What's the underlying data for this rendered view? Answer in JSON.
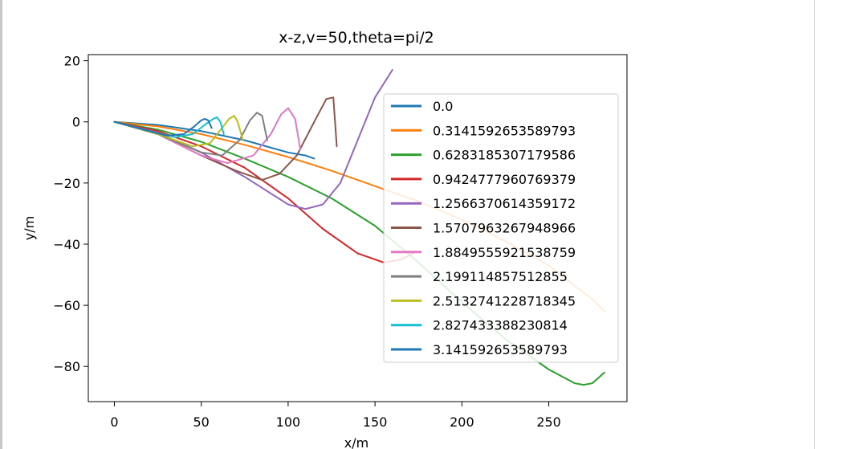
{
  "chart_data": {
    "type": "line",
    "title": "x-z,v=50,theta=pi/2",
    "xlabel": "x/m",
    "ylabel": "y/m",
    "xlim": [
      -15,
      295
    ],
    "ylim": [
      -91.5,
      22
    ],
    "xticks": [
      0,
      50,
      100,
      150,
      200,
      250
    ],
    "yticks": [
      20,
      0,
      -20,
      -40,
      -60,
      -80
    ],
    "xtick_labels": [
      "0",
      "50",
      "100",
      "150",
      "200",
      "250"
    ],
    "ytick_labels": [
      "20",
      "0",
      "−20",
      "−40",
      "−60",
      "−80"
    ],
    "grid": false,
    "legend_position": "center-right",
    "series": [
      {
        "name": "0.0",
        "color": "#1f77b4",
        "x": [
          0,
          25,
          50,
          75,
          100,
          110,
          115
        ],
        "y": [
          0,
          -1,
          -3,
          -6,
          -10,
          -11,
          -12
        ]
      },
      {
        "name": "0.3141592653589793",
        "color": "#ff7f0e",
        "x": [
          0,
          25,
          50,
          75,
          100,
          125,
          150,
          175,
          200,
          225,
          250,
          275,
          282
        ],
        "y": [
          0,
          -1.5,
          -4,
          -7.5,
          -11.5,
          -16,
          -21,
          -26,
          -32,
          -39,
          -47,
          -58,
          -62
        ]
      },
      {
        "name": "0.6283185307179586",
        "color": "#2ca02c",
        "x": [
          0,
          25,
          50,
          75,
          100,
          125,
          150,
          175,
          200,
          225,
          250,
          265,
          270,
          275,
          282
        ],
        "y": [
          0,
          -2.5,
          -6.5,
          -12,
          -18,
          -25,
          -34,
          -46,
          -59,
          -71,
          -81,
          -85.5,
          -86,
          -85.5,
          -82
        ]
      },
      {
        "name": "0.9424777960769379",
        "color": "#d62728",
        "x": [
          0,
          25,
          50,
          75,
          100,
          120,
          140,
          155,
          165,
          172
        ],
        "y": [
          0,
          -3,
          -8,
          -15,
          -25,
          -35,
          -43,
          -46,
          -45,
          -43
        ]
      },
      {
        "name": "1.2566370614359172",
        "color": "#9467bd",
        "x": [
          0,
          25,
          50,
          75,
          100,
          110,
          120,
          130,
          140,
          150,
          160
        ],
        "y": [
          0,
          -3.5,
          -10,
          -18,
          -27,
          -28.5,
          -27,
          -20,
          -6,
          8,
          17
        ]
      },
      {
        "name": "1.5707963267948966",
        "color": "#8c564b",
        "x": [
          0,
          25,
          50,
          70,
          85,
          95,
          105,
          115,
          122,
          126,
          128
        ],
        "y": [
          0,
          -4,
          -11,
          -16,
          -19,
          -17,
          -11,
          0,
          7.5,
          8,
          -8
        ]
      },
      {
        "name": "1.8849555921538759",
        "color": "#e377c2",
        "x": [
          0,
          25,
          50,
          65,
          80,
          90,
          96,
          100,
          104,
          107
        ],
        "y": [
          0,
          -4,
          -11,
          -13.5,
          -11,
          -4,
          2.5,
          4.5,
          1,
          -9
        ]
      },
      {
        "name": "2.199114857512855",
        "color": "#7f7f7f",
        "x": [
          0,
          25,
          50,
          62,
          72,
          78,
          82,
          85,
          88
        ],
        "y": [
          0,
          -4,
          -10,
          -11,
          -6,
          0.5,
          3,
          2,
          -6
        ]
      },
      {
        "name": "2.5132741228718345",
        "color": "#bcbd22",
        "x": [
          0,
          25,
          45,
          55,
          62,
          66,
          69,
          71,
          74
        ],
        "y": [
          0,
          -4,
          -8,
          -7,
          -2,
          1,
          2,
          0,
          -6
        ]
      },
      {
        "name": "2.827433388230814",
        "color": "#17becf",
        "x": [
          0,
          20,
          35,
          45,
          52,
          57,
          59,
          61,
          63
        ],
        "y": [
          0,
          -3,
          -5,
          -4,
          -1,
          1,
          1.5,
          0,
          -4
        ]
      },
      {
        "name": "3.141592653589793",
        "color": "#1f77b4",
        "x": [
          0,
          20,
          30,
          40,
          46,
          50,
          52,
          54,
          56
        ],
        "y": [
          0,
          -3,
          -4.5,
          -4,
          -1.5,
          0.5,
          1,
          0.5,
          -2
        ]
      }
    ]
  }
}
